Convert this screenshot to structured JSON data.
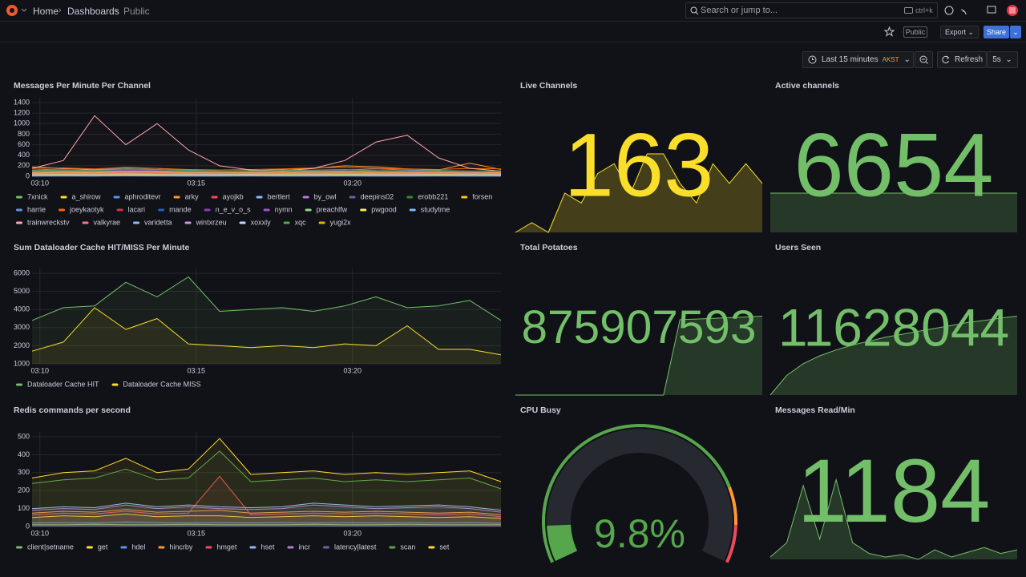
{
  "topbar": {
    "breadcrumbs": [
      "Home",
      "Dashboards",
      "Public"
    ],
    "search": "Search or jump to...",
    "shortcut": "ctrl+k"
  },
  "toolbar": {
    "public": "Public",
    "export": "Export",
    "share": "Share"
  },
  "timepicker": {
    "range": "Last 15 minutes",
    "timezone": "AKST",
    "refresh": "Refresh",
    "interval": "5s"
  },
  "panels": [
    {
      "type": "timeseries",
      "title": "Messages Per Minute Per Channel",
      "ylim": [
        0,
        1400
      ],
      "yticks": [
        0,
        200,
        400,
        600,
        800,
        1000,
        1200,
        1400
      ],
      "xlim": [
        0,
        15
      ],
      "xticks": [
        {
          "value": 0.25,
          "label": "03:10"
        },
        {
          "value": 5.25,
          "label": "03:15"
        },
        {
          "value": 10.25,
          "label": "03:20"
        }
      ],
      "series": [
        {
          "name": "7xnick",
          "color": "#73bf69",
          "values": [
            60,
            70,
            65,
            80,
            75,
            70,
            60,
            55,
            60,
            65,
            70,
            60,
            55,
            60,
            50,
            55
          ]
        },
        {
          "name": "a_shirow",
          "color": "#fade2a",
          "values": [
            40,
            50,
            45,
            60,
            55,
            40,
            45,
            50,
            40,
            45,
            50,
            55,
            45,
            40,
            50,
            45
          ]
        },
        {
          "name": "aphroditevr",
          "color": "#5794f2",
          "values": [
            120,
            140,
            130,
            160,
            150,
            120,
            100,
            90,
            110,
            100,
            120,
            140,
            120,
            110,
            100,
            90
          ]
        },
        {
          "name": "arky",
          "color": "#ff9830",
          "values": [
            180,
            150,
            120,
            140,
            130,
            100,
            90,
            110,
            130,
            150,
            200,
            180,
            140,
            120,
            250,
            130
          ]
        },
        {
          "name": "ayojkb",
          "color": "#f2495c",
          "values": [
            30,
            30,
            35,
            40,
            30,
            25,
            30,
            30,
            35,
            30,
            30,
            35,
            30,
            30,
            30,
            30
          ]
        },
        {
          "name": "bertlert",
          "color": "#8ab8ff",
          "values": [
            80,
            90,
            85,
            100,
            95,
            80,
            70,
            75,
            80,
            85,
            90,
            80,
            75,
            80,
            70,
            75
          ]
        },
        {
          "name": "by_owl",
          "color": "#b877d9",
          "values": [
            20,
            25,
            20,
            30,
            25,
            20,
            20,
            25,
            20,
            20,
            25,
            20,
            20,
            25,
            20,
            20
          ]
        },
        {
          "name": "deepins02",
          "color": "#705da0",
          "values": [
            50,
            55,
            60,
            70,
            60,
            55,
            50,
            50,
            55,
            60,
            55,
            50,
            55,
            60,
            55,
            50
          ]
        },
        {
          "name": "erobb221",
          "color": "#37872d",
          "values": [
            100,
            110,
            100,
            130,
            120,
            100,
            90,
            95,
            100,
            110,
            120,
            100,
            95,
            100,
            90,
            95
          ]
        },
        {
          "name": "forsen",
          "color": "#f2cc0c",
          "values": [
            70,
            80,
            75,
            90,
            85,
            70,
            65,
            70,
            75,
            80,
            85,
            75,
            70,
            75,
            65,
            70
          ]
        },
        {
          "name": "harrie",
          "color": "#5794f2",
          "values": [
            10,
            12,
            10,
            15,
            12,
            10,
            10,
            12,
            10,
            10,
            12,
            10,
            10,
            12,
            10,
            10
          ]
        },
        {
          "name": "joeykaotyk",
          "color": "#fa6400",
          "values": [
            150,
            160,
            140,
            170,
            150,
            130,
            120,
            130,
            140,
            160,
            170,
            150,
            140,
            130,
            150,
            140
          ]
        },
        {
          "name": "lacari",
          "color": "#e02f44",
          "values": [
            40,
            45,
            40,
            50,
            45,
            40,
            35,
            40,
            45,
            40,
            45,
            40,
            40,
            45,
            40,
            40
          ]
        },
        {
          "name": "mande",
          "color": "#1f60c4",
          "values": [
            15,
            20,
            15,
            25,
            20,
            15,
            15,
            20,
            15,
            15,
            20,
            15,
            15,
            20,
            15,
            15
          ]
        },
        {
          "name": "n_e_v_o_s",
          "color": "#8f3bb8",
          "values": [
            25,
            30,
            25,
            35,
            30,
            25,
            25,
            30,
            25,
            25,
            30,
            25,
            25,
            30,
            25,
            25
          ]
        },
        {
          "name": "nymn",
          "color": "#a352cc",
          "values": [
            90,
            100,
            95,
            110,
            105,
            90,
            85,
            90,
            95,
            100,
            105,
            95,
            90,
            95,
            85,
            90
          ]
        },
        {
          "name": "preachlfw",
          "color": "#96d98d",
          "values": [
            35,
            40,
            35,
            45,
            40,
            35,
            30,
            35,
            40,
            35,
            40,
            35,
            35,
            40,
            35,
            35
          ]
        },
        {
          "name": "pwgood",
          "color": "#ffee52",
          "values": [
            20,
            22,
            20,
            25,
            22,
            20,
            18,
            20,
            22,
            20,
            22,
            20,
            20,
            22,
            20,
            20
          ]
        },
        {
          "name": "studytme",
          "color": "#73bfff",
          "values": [
            5,
            6,
            5,
            8,
            6,
            5,
            5,
            6,
            5,
            5,
            6,
            5,
            5,
            6,
            5,
            5
          ]
        },
        {
          "name": "trainwreckstv",
          "color": "#ffa6b0",
          "values": [
            150,
            300,
            1150,
            600,
            1000,
            500,
            200,
            120,
            100,
            150,
            300,
            650,
            780,
            350,
            150,
            100
          ]
        },
        {
          "name": "valkyrae",
          "color": "#ff7383",
          "values": [
            60,
            65,
            60,
            75,
            70,
            60,
            55,
            60,
            65,
            60,
            65,
            60,
            60,
            65,
            60,
            60
          ]
        },
        {
          "name": "varidetta",
          "color": "#8ab8ff",
          "values": [
            10,
            10,
            12,
            15,
            12,
            10,
            10,
            10,
            12,
            10,
            10,
            12,
            10,
            10,
            12,
            10
          ]
        },
        {
          "name": "wintxrzeu",
          "color": "#ca95e5",
          "values": [
            45,
            50,
            45,
            55,
            50,
            45,
            40,
            45,
            50,
            45,
            50,
            45,
            45,
            50,
            45,
            45
          ]
        },
        {
          "name": "xoxxly",
          "color": "#c0d8ff",
          "values": [
            30,
            35,
            30,
            40,
            35,
            30,
            30,
            35,
            30,
            30,
            35,
            30,
            30,
            35,
            30,
            30
          ]
        },
        {
          "name": "xqc",
          "color": "#56a64b",
          "values": [
            110,
            120,
            110,
            140,
            130,
            110,
            100,
            105,
            110,
            120,
            130,
            110,
            105,
            110,
            100,
            105
          ]
        },
        {
          "name": "yugi2x",
          "color": "#e0b400",
          "values": [
            25,
            28,
            25,
            30,
            28,
            25,
            22,
            25,
            28,
            25,
            28,
            25,
            25,
            28,
            25,
            25
          ]
        }
      ]
    },
    {
      "type": "stat",
      "title": "Live Channels",
      "value": 163,
      "color": "#fade2a",
      "sparkline": [
        150,
        151,
        150,
        154,
        153,
        156,
        157,
        154,
        158,
        158,
        155,
        153,
        157,
        155,
        157,
        155
      ]
    },
    {
      "type": "stat",
      "title": "Active channels",
      "value": 6654,
      "color": "#73bf69",
      "sparkline": [
        6654,
        6654,
        6654,
        6654,
        6654,
        6654,
        6654,
        6654,
        6654,
        6654,
        6654,
        6654,
        6654,
        6654,
        6654,
        6654
      ]
    },
    {
      "type": "timeseries",
      "title": "Sum Dataloader Cache HIT/MISS Per Minute",
      "ylim": [
        1000,
        6000
      ],
      "yticks": [
        1000,
        2000,
        3000,
        4000,
        5000,
        6000
      ],
      "xlim": [
        0,
        15
      ],
      "xticks": [
        {
          "value": 0.25,
          "label": "03:10"
        },
        {
          "value": 5.25,
          "label": "03:15"
        },
        {
          "value": 10.25,
          "label": "03:20"
        }
      ],
      "series": [
        {
          "name": "Dataloader Cache HIT",
          "color": "#73bf69",
          "values": [
            3400,
            4100,
            4200,
            5500,
            4700,
            5800,
            3900,
            4000,
            4100,
            3900,
            4200,
            4700,
            4100,
            4200,
            4500,
            3400
          ]
        },
        {
          "name": "Dataloader Cache MISS",
          "color": "#fade2a",
          "values": [
            1700,
            2200,
            4100,
            2900,
            3500,
            2100,
            2000,
            1900,
            2000,
            1900,
            2100,
            2000,
            3100,
            1800,
            1800,
            1500
          ]
        }
      ]
    },
    {
      "type": "stat",
      "title": "Total Potatoes",
      "value": 875907593,
      "color": "#73bf69",
      "sparkline": [
        875850000,
        875850000,
        875850000,
        875850000,
        875850000,
        875850000,
        875850000,
        875850000,
        875850000,
        875850000,
        875905000,
        875905500,
        875906000,
        875906500,
        875907000,
        875907593
      ]
    },
    {
      "type": "stat",
      "title": "Users Seen",
      "value": 11628044,
      "color": "#73bf69",
      "sparkline": [
        11620000,
        11622000,
        11623200,
        11624000,
        11624600,
        11625100,
        11625500,
        11625900,
        11626200,
        11626500,
        11626800,
        11627100,
        11627400,
        11627600,
        11627850,
        11628044
      ]
    },
    {
      "type": "timeseries",
      "title": "Redis commands per second",
      "ylim": [
        0,
        500
      ],
      "yticks": [
        0,
        100,
        200,
        300,
        400,
        500
      ],
      "xlim": [
        0,
        15
      ],
      "xticks": [
        {
          "value": 0.25,
          "label": "03:10"
        },
        {
          "value": 5.25,
          "label": "03:15"
        },
        {
          "value": 10.25,
          "label": "03:20"
        }
      ],
      "series": [
        {
          "name": "client|setname",
          "color": "#73bf69",
          "values": [
            10,
            10,
            12,
            10,
            10,
            12,
            10,
            10,
            10,
            12,
            10,
            10,
            12,
            10,
            10,
            10
          ]
        },
        {
          "name": "get",
          "color": "#fade2a",
          "values": [
            50,
            60,
            55,
            70,
            55,
            60,
            60,
            50,
            55,
            60,
            55,
            60,
            55,
            50,
            55,
            45
          ]
        },
        {
          "name": "hdel",
          "color": "#5794f2",
          "values": [
            20,
            22,
            20,
            25,
            22,
            20,
            22,
            20,
            22,
            20,
            22,
            20,
            22,
            20,
            22,
            18
          ]
        },
        {
          "name": "hincrby",
          "color": "#ff9830",
          "values": [
            75,
            85,
            80,
            95,
            80,
            85,
            90,
            75,
            80,
            85,
            80,
            85,
            80,
            75,
            80,
            65
          ]
        },
        {
          "name": "hmget",
          "color": "#f2495c",
          "values": [
            65,
            75,
            70,
            85,
            70,
            75,
            280,
            65,
            70,
            75,
            70,
            75,
            70,
            65,
            70,
            55
          ]
        },
        {
          "name": "hset",
          "color": "#8ab8ff",
          "values": [
            100,
            110,
            105,
            130,
            110,
            120,
            110,
            105,
            110,
            130,
            120,
            110,
            115,
            120,
            110,
            90
          ]
        },
        {
          "name": "incr",
          "color": "#b877d9",
          "values": [
            90,
            100,
            95,
            120,
            100,
            110,
            100,
            95,
            100,
            120,
            110,
            100,
            105,
            110,
            100,
            80
          ]
        },
        {
          "name": "latency|latest",
          "color": "#705da0",
          "values": [
            2,
            2,
            2,
            2,
            2,
            2,
            2,
            2,
            2,
            2,
            2,
            2,
            2,
            2,
            2,
            2
          ]
        },
        {
          "name": "scan",
          "color": "#56a64b",
          "values": [
            240,
            260,
            270,
            320,
            260,
            270,
            420,
            250,
            260,
            270,
            250,
            260,
            250,
            260,
            270,
            210
          ]
        },
        {
          "name": "set",
          "color": "#fade2a",
          "values": [
            270,
            300,
            310,
            380,
            300,
            320,
            490,
            290,
            300,
            310,
            290,
            300,
            290,
            300,
            310,
            250
          ]
        }
      ]
    },
    {
      "type": "gauge",
      "title": "CPU Busy",
      "value": 9.8,
      "value_label": "9.8%",
      "min": 0,
      "max": 100,
      "color": "#56a64b",
      "thresholds": [
        {
          "value": 0,
          "color": "#56a64b"
        },
        {
          "value": 80,
          "color": "#ff9830"
        },
        {
          "value": 90,
          "color": "#f2495c"
        }
      ]
    },
    {
      "type": "stat",
      "title": "Messages Read/Min",
      "value": 1184,
      "color": "#73bf69",
      "sparkline": [
        300,
        420,
        900,
        450,
        950,
        420,
        330,
        300,
        320,
        280,
        360,
        300,
        340,
        380,
        330,
        360
      ]
    }
  ]
}
